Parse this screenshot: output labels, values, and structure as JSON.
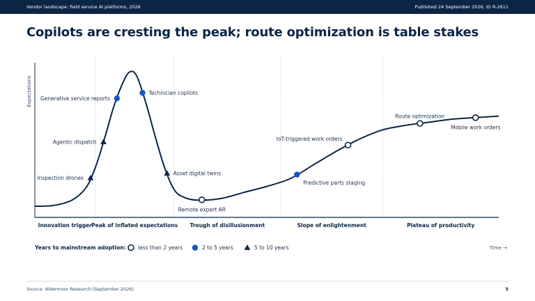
{
  "header": {
    "left_text": "Vendor landscape: field service AI platforms, 2026",
    "right_text": "Published 24 September 2026, ID R-2611"
  },
  "title": "Copilots are cresting the peak; route optimization is table stakes",
  "footer": {
    "source": "Source: Aldermoor Research (September 2026)",
    "page": "5"
  },
  "colors": {
    "navy": "#0b2545",
    "blue": "#1456c8",
    "grid": "#cfd6df"
  },
  "chart_data": {
    "type": "scatter",
    "subtype": "hype-cycle",
    "ylabel": "Expectations",
    "xlabel": "Time →",
    "phases": [
      "Innovation trigger",
      "Peak of inflated expectations",
      "Trough of disillusionment",
      "Slope of enlightenment",
      "Plateau of productivity"
    ],
    "phase_boundaries": [
      0.13,
      0.3,
      0.53,
      0.75
    ],
    "curve": [
      [
        0,
        0.05
      ],
      [
        0.04,
        0.055
      ],
      [
        0.08,
        0.09
      ],
      [
        0.11,
        0.17
      ],
      [
        0.13,
        0.3
      ],
      [
        0.15,
        0.49
      ],
      [
        0.17,
        0.7
      ],
      [
        0.19,
        0.86
      ],
      [
        0.205,
        0.93
      ],
      [
        0.22,
        0.9
      ],
      [
        0.24,
        0.72
      ],
      [
        0.26,
        0.5
      ],
      [
        0.28,
        0.3
      ],
      [
        0.3,
        0.16
      ],
      [
        0.32,
        0.11
      ],
      [
        0.35,
        0.09
      ],
      [
        0.4,
        0.1
      ],
      [
        0.45,
        0.14
      ],
      [
        0.5,
        0.18
      ],
      [
        0.55,
        0.23
      ],
      [
        0.6,
        0.32
      ],
      [
        0.65,
        0.41
      ],
      [
        0.7,
        0.49
      ],
      [
        0.75,
        0.55
      ],
      [
        0.8,
        0.58
      ],
      [
        0.85,
        0.6
      ],
      [
        0.9,
        0.62
      ],
      [
        0.95,
        0.63
      ],
      [
        1.0,
        0.64
      ]
    ],
    "categories": [
      {
        "key": "lt2",
        "label": "less than 2 years",
        "marker": "hollow-circle"
      },
      {
        "key": "2to5",
        "label": "2 to 5 years",
        "marker": "filled-circle"
      },
      {
        "key": "5to10",
        "label": "5 to 10 years",
        "marker": "triangle"
      }
    ],
    "legend_title": "Years to mainstream adoption:",
    "points": [
      {
        "name": "Inspection drones",
        "x": 0.12,
        "category": "5to10",
        "label_side": "left"
      },
      {
        "name": "Agentic dispatch",
        "x": 0.148,
        "category": "5to10",
        "label_side": "left"
      },
      {
        "name": "Generative service reports",
        "x": 0.177,
        "category": "2to5",
        "label_side": "left"
      },
      {
        "name": "Technician copilots",
        "x": 0.232,
        "category": "2to5",
        "label_side": "right"
      },
      {
        "name": "Asset digital twins",
        "x": 0.285,
        "category": "5to10",
        "label_side": "right"
      },
      {
        "name": "Remote expert AR",
        "x": 0.36,
        "category": "lt2",
        "label_side": "below"
      },
      {
        "name": "Predictive parts staging",
        "x": 0.565,
        "category": "2to5",
        "label_side": "below-right"
      },
      {
        "name": "IoT-triggered work orders",
        "x": 0.675,
        "category": "lt2",
        "label_side": "above-left"
      },
      {
        "name": "Route optimization",
        "x": 0.83,
        "category": "lt2",
        "label_side": "above"
      },
      {
        "name": "Mobile work orders",
        "x": 0.95,
        "category": "lt2",
        "label_side": "below"
      }
    ]
  }
}
